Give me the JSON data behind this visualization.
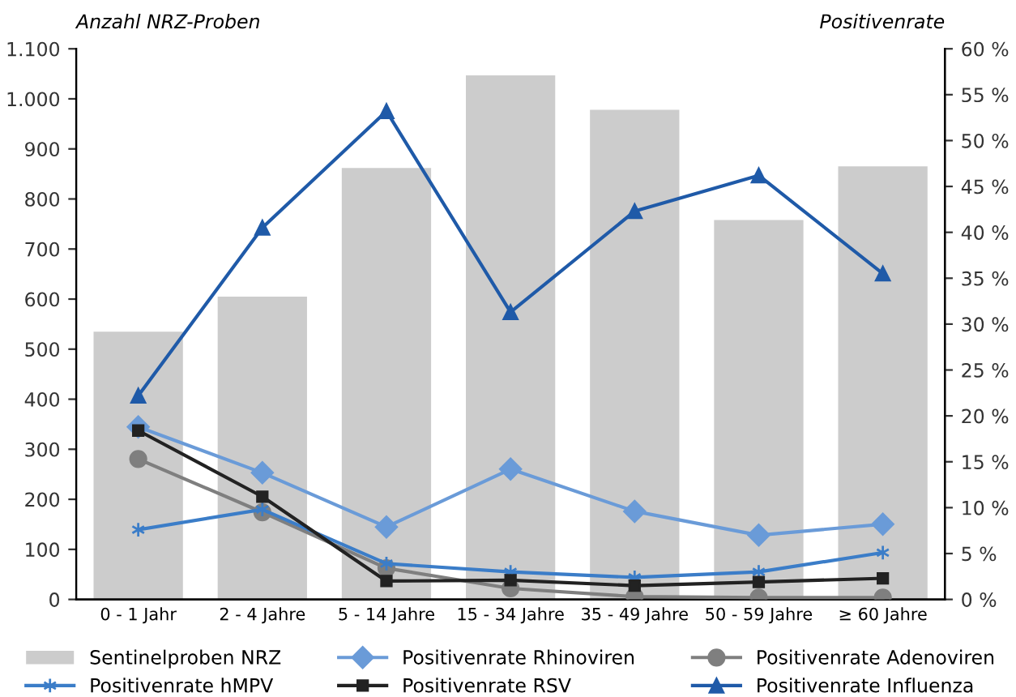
{
  "chart_data": {
    "type": "bar",
    "ylabel": "Anzahl NRZ-Proben",
    "y2label": "Positivenrate",
    "categories": [
      "0 - 1 Jahr",
      "2 - 4 Jahre",
      "5 - 14 Jahre",
      "15 - 34 Jahre",
      "35 - 49 Jahre",
      "50 - 59 Jahre",
      "≥ 60 Jahre"
    ],
    "ylim": [
      0,
      1100
    ],
    "yticks": [
      0,
      100,
      200,
      300,
      400,
      500,
      600,
      700,
      800,
      900,
      {
        "value": 1000,
        "label": "1.000"
      },
      {
        "value": 1100,
        "label": "1.100"
      }
    ],
    "y2lim": [
      0,
      60
    ],
    "y2ticks": [
      {
        "value": 0,
        "label": "0 %"
      },
      {
        "value": 5,
        "label": "5 %"
      },
      {
        "value": 10,
        "label": "10 %"
      },
      {
        "value": 15,
        "label": "15 %"
      },
      {
        "value": 20,
        "label": "20 %"
      },
      {
        "value": 25,
        "label": "25 %"
      },
      {
        "value": 30,
        "label": "30 %"
      },
      {
        "value": 35,
        "label": "35 %"
      },
      {
        "value": 40,
        "label": "40 %"
      },
      {
        "value": 45,
        "label": "45 %"
      },
      {
        "value": 50,
        "label": "50 %"
      },
      {
        "value": 55,
        "label": "55 %"
      },
      {
        "value": 60,
        "label": "60 %"
      }
    ],
    "grid": false,
    "legend": "bottom",
    "series": [
      {
        "name": "Sentinelproben NRZ",
        "color": "#cccccc",
        "values": [
          535,
          605,
          862,
          1047,
          978,
          758,
          865
        ]
      },
      {
        "name": "Positivenrate Rhinoviren",
        "type": "line",
        "axis": "y2",
        "marker": "diamond",
        "color": "#6a9bd8",
        "values": [
          18.8,
          13.8,
          7.9,
          14.2,
          9.6,
          7.0,
          8.2
        ]
      },
      {
        "name": "Positivenrate Adenoviren",
        "type": "line",
        "axis": "y2",
        "marker": "circle",
        "color": "#7f7f7f",
        "values": [
          15.3,
          9.5,
          3.4,
          1.2,
          0.3,
          0.2,
          0.2
        ]
      },
      {
        "name": "Positivenrate hMPV",
        "type": "line",
        "axis": "y2",
        "marker": "cross",
        "color": "#3b7dc8",
        "values": [
          7.6,
          9.8,
          3.9,
          3.0,
          2.4,
          3.0,
          5.1
        ]
      },
      {
        "name": "Positivenrate RSV",
        "type": "line",
        "axis": "y2",
        "marker": "square",
        "color": "#222222",
        "values": [
          18.4,
          11.2,
          2.0,
          2.1,
          1.5,
          1.9,
          2.3
        ]
      },
      {
        "name": "Positivenrate Influenza",
        "type": "line",
        "axis": "y2",
        "marker": "triangle",
        "color": "#1f5aa8",
        "values": [
          22.2,
          40.5,
          53.2,
          31.3,
          42.3,
          46.2,
          35.5
        ]
      }
    ]
  }
}
